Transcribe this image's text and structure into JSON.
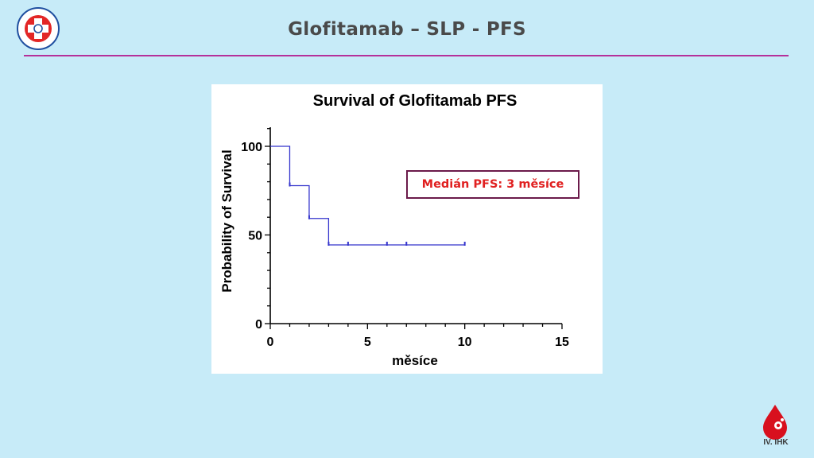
{
  "slide": {
    "title": "Glofitamab – SLP - PFS",
    "hospital_logo_text": "FAKULTNÍ NEMOCNICE HRADEC KRÁLOVÉ",
    "footer_logo_label": "IV. IHK"
  },
  "annotation": {
    "median_text": "Medián PFS: 3 měsíce"
  },
  "colors": {
    "background": "#c7ebf8",
    "rule": "#b5309a",
    "curve": "#3333cc",
    "annotation_text": "#e02020",
    "annotation_border": "#6b1a4a"
  },
  "chart_data": {
    "type": "line",
    "title": "Survival of Glofitamab PFS",
    "xlabel": "měsíce",
    "ylabel": "Probability of Survival",
    "xlim": [
      0,
      15
    ],
    "ylim": [
      0,
      100
    ],
    "xticks": [
      0,
      5,
      10,
      15
    ],
    "yticks": [
      0,
      50,
      100
    ],
    "step_curve": {
      "x": [
        0,
        1,
        2,
        3,
        10
      ],
      "y": [
        100,
        77.8,
        59.3,
        44.4,
        44.4
      ]
    },
    "censored": [
      {
        "x": 1,
        "y": 77.8
      },
      {
        "x": 2,
        "y": 59.3
      },
      {
        "x": 3,
        "y": 44.4
      },
      {
        "x": 4,
        "y": 44.4
      },
      {
        "x": 6,
        "y": 44.4
      },
      {
        "x": 7,
        "y": 44.4
      },
      {
        "x": 10,
        "y": 44.4
      }
    ],
    "grid": false
  }
}
